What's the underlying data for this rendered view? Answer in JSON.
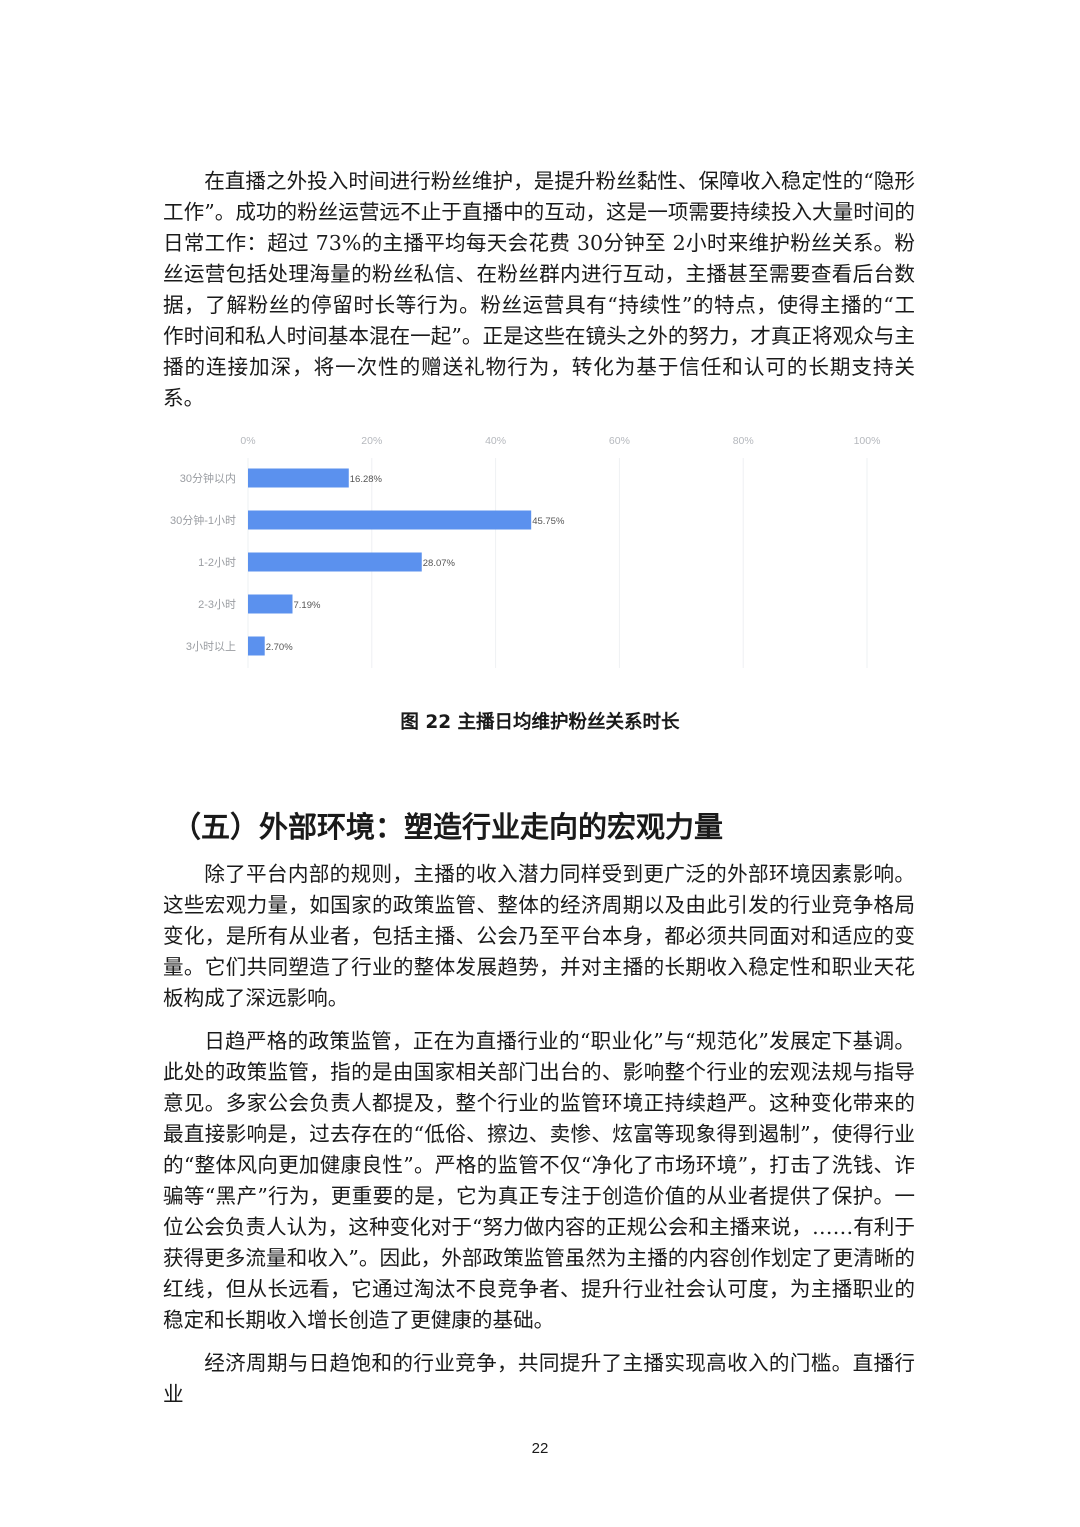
{
  "paragraphs": [
    "在直播之外投入时间进行粉丝维护，是提升粉丝黏性、保障收入稳定性的“隐形工作”。成功的粉丝运营远不止于直播中的互动，这是一项需要持续投入大量时间的日常工作：超过 73%的主播平均每天会花费 30分钟至 2小时来维护粉丝关系。粉丝运营包括处理海量的粉丝私信、在粉丝群内进行互动，主播甚至需要查看后台数据，了解粉丝的停留时长等行为。粉丝运营具有“持续性”的特点，使得主播的“工作时间和私人时间基本混在一起”。正是这些在镜头之外的努力，才真正将观众与主播的连接加深，将一次性的赠送礼物行为，转化为基于信任和认可的长期支持关系。"
  ],
  "chart_data": {
    "type": "bar",
    "orientation": "horizontal",
    "categories": [
      "30分钟以内",
      "30分钟-1小时",
      "1-2小时",
      "2-3小时",
      "3小时以上"
    ],
    "values": [
      16.28,
      45.75,
      28.07,
      7.19,
      2.7
    ],
    "value_labels": [
      "16.28%",
      "45.75%",
      "28.07%",
      "7.19%",
      "2.70%"
    ],
    "xlim": [
      0,
      100
    ],
    "x_ticks": [
      "0%",
      "20%",
      "40%",
      "60%",
      "80%",
      "100%"
    ],
    "x_tick_values": [
      0,
      20,
      40,
      60,
      80,
      100
    ],
    "x_axis_position": "top",
    "grid": true,
    "bar_color": "#5b91ee",
    "title": "图 22 主播日均维护粉丝关系时长"
  },
  "caption": "图 22 主播日均维护粉丝关系时长",
  "section": {
    "heading": "（五）外部环境：塑造行业走向的宏观力量",
    "paragraphs": [
      "除了平台内部的规则，主播的收入潜力同样受到更广泛的外部环境因素影响。这些宏观力量，如国家的政策监管、整体的经济周期以及由此引发的行业竞争格局变化，是所有从业者，包括主播、公会乃至平台本身，都必须共同面对和适应的变量。它们共同塑造了行业的整体发展趋势，并对主播的长期收入稳定性和职业天花板构成了深远影响。",
      "日趋严格的政策监管，正在为直播行业的“职业化”与“规范化”发展定下基调。此处的政策监管，指的是由国家相关部门出台的、影响整个行业的宏观法规与指导意见。多家公会负责人都提及，整个行业的监管环境正持续趋严。这种变化带来的最直接影响是，过去存在的“低俗、擦边、卖惨、炫富等现象得到遏制”，使得行业的“整体风向更加健康良性”。严格的监管不仅“净化了市场环境”，打击了洗钱、诈骗等“黑产”行为，更重要的是，它为真正专注于创造价值的从业者提供了保护。一位公会负责人认为，这种变化对于“努力做内容的正规公会和主播来说，……有利于获得更多流量和收入”。因此，外部政策监管虽然为主播的内容创作划定了更清晰的红线，但从长远看，它通过淘汰不良竞争者、提升行业社会认可度，为主播职业的稳定和长期收入增长创造了更健康的基础。",
      "经济周期与日趋饱和的行业竞争，共同提升了主播实现高收入的门槛。直播行业"
    ]
  },
  "page_number": "22"
}
